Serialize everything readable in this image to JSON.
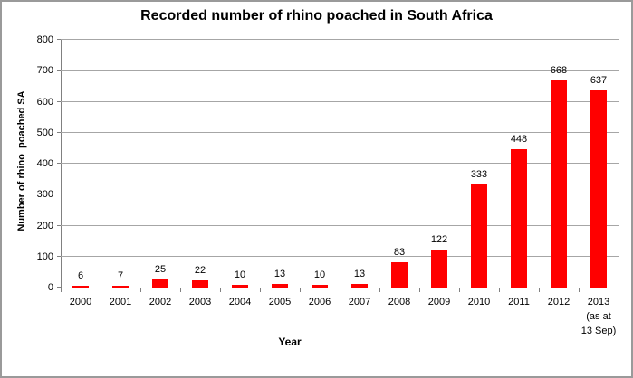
{
  "chart_data": {
    "type": "bar",
    "title": "Recorded number of rhino poached in South Africa",
    "xlabel": "Year",
    "ylabel": "Number of rhino  poached SA",
    "categories": [
      "2000",
      "2001",
      "2002",
      "2003",
      "2004",
      "2005",
      "2006",
      "2007",
      "2008",
      "2009",
      "2010",
      "2011",
      "2012",
      "2013 (as at 13 Sep)"
    ],
    "x_tick_label_lines": [
      [
        "2000"
      ],
      [
        "2001"
      ],
      [
        "2002"
      ],
      [
        "2003"
      ],
      [
        "2004"
      ],
      [
        "2005"
      ],
      [
        "2006"
      ],
      [
        "2007"
      ],
      [
        "2008"
      ],
      [
        "2009"
      ],
      [
        "2010"
      ],
      [
        "2011"
      ],
      [
        "2012"
      ],
      [
        "2013",
        "(as at",
        "13 Sep)"
      ]
    ],
    "values": [
      6,
      7,
      25,
      22,
      10,
      13,
      10,
      13,
      83,
      122,
      333,
      448,
      668,
      637
    ],
    "data_labels": [
      "6",
      "7",
      "25",
      "22",
      "10",
      "13",
      "10",
      "13",
      "83",
      "122",
      "333",
      "448",
      "668",
      "637"
    ],
    "ylim": [
      0,
      800
    ],
    "yticks": [
      0,
      100,
      200,
      300,
      400,
      500,
      600,
      700,
      800
    ],
    "grid": "horizontal",
    "legend": "none",
    "bar_color": "#FF0000",
    "axis_color": "#808080",
    "gridline_color": "#A6A6A6",
    "text_color": "#000000",
    "background_color": "#FFFFFF",
    "border_color": "#9A9A9A"
  }
}
